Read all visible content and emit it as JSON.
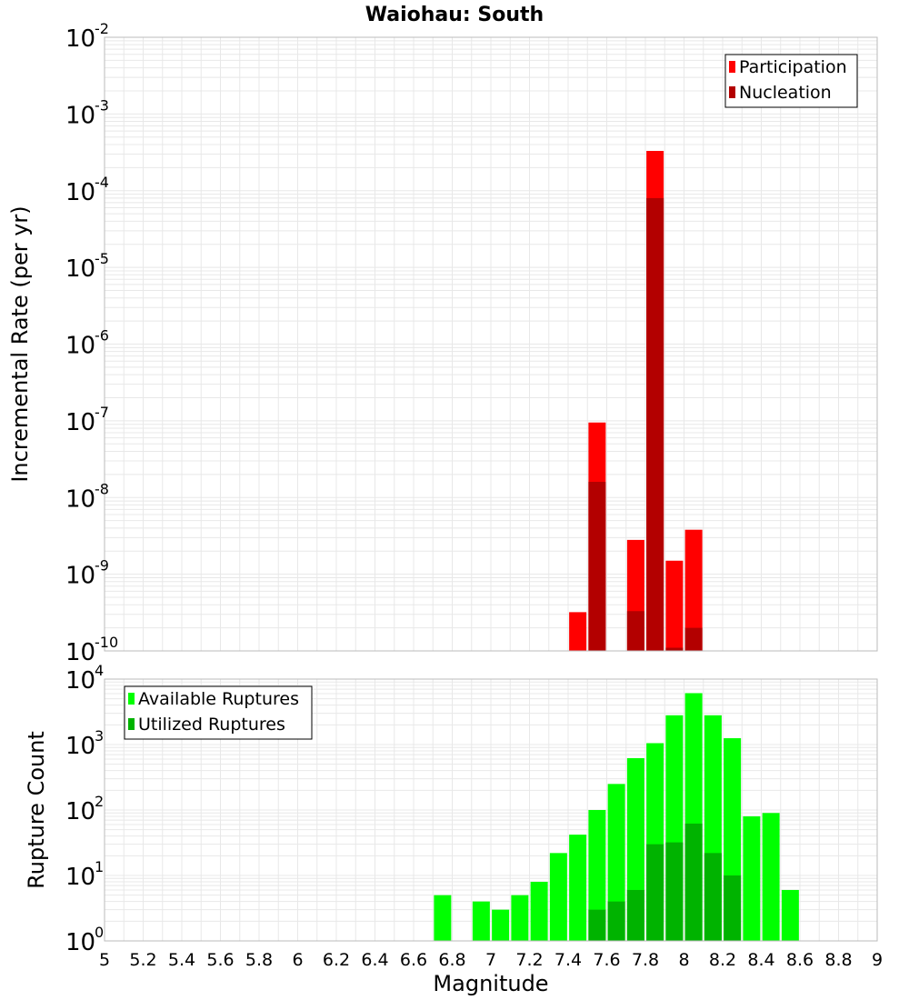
{
  "title": "Waiohau: South",
  "xlabel": "Magnitude",
  "x_ticks": [
    "5",
    "5.2",
    "5.4",
    "5.6",
    "5.8",
    "6",
    "6.2",
    "6.4",
    "6.6",
    "6.8",
    "7",
    "7.2",
    "7.4",
    "7.6",
    "7.8",
    "8",
    "8.2",
    "8.4",
    "8.6",
    "8.8",
    "9"
  ],
  "colors": {
    "participation": "#ff0000",
    "nucleation": "#b30000",
    "available": "#00ff00",
    "utilized": "#00b300",
    "grid": "#e8e8e8",
    "frame": "#bbbbbb"
  },
  "chart_data": [
    {
      "type": "bar",
      "panel": "top",
      "xlabel": "Magnitude",
      "ylabel": "Incremental Rate (per yr)",
      "xlim": [
        5,
        9
      ],
      "ylim": [
        1e-10,
        0.01
      ],
      "yscale": "log",
      "grid": true,
      "legend_placement": "top-right",
      "y_tick_labels": [
        {
          "base": "10",
          "exp": "-10"
        },
        {
          "base": "10",
          "exp": "-9"
        },
        {
          "base": "10",
          "exp": "-8"
        },
        {
          "base": "10",
          "exp": "-7"
        },
        {
          "base": "10",
          "exp": "-6"
        },
        {
          "base": "10",
          "exp": "-5"
        },
        {
          "base": "10",
          "exp": "-4"
        },
        {
          "base": "10",
          "exp": "-3"
        },
        {
          "base": "10",
          "exp": "-2"
        }
      ],
      "series": [
        {
          "name": "Participation",
          "color": "#ff0000",
          "x": [
            7.45,
            7.55,
            7.75,
            7.85,
            7.95,
            8.05
          ],
          "values": [
            3.2e-10,
            9.5e-08,
            2.8e-09,
            0.00033,
            1.5e-09,
            3.8e-09
          ]
        },
        {
          "name": "Nucleation",
          "color": "#b30000",
          "x": [
            7.55,
            7.75,
            7.85,
            7.95,
            8.05
          ],
          "values": [
            1.6e-08,
            3.3e-10,
            8e-05,
            1.1e-10,
            2e-10
          ]
        }
      ]
    },
    {
      "type": "bar",
      "panel": "bottom",
      "xlabel": "Magnitude",
      "ylabel": "Rupture Count",
      "xlim": [
        5,
        9
      ],
      "ylim": [
        1,
        10000
      ],
      "yscale": "log",
      "grid": true,
      "legend_placement": "top-left",
      "y_tick_labels": [
        {
          "base": "10",
          "exp": "0"
        },
        {
          "base": "10",
          "exp": "1"
        },
        {
          "base": "10",
          "exp": "2"
        },
        {
          "base": "10",
          "exp": "3"
        },
        {
          "base": "10",
          "exp": "4"
        }
      ],
      "series": [
        {
          "name": "Available Ruptures",
          "color": "#00ff00",
          "x": [
            6.75,
            6.95,
            7.05,
            7.15,
            7.25,
            7.35,
            7.45,
            7.55,
            7.65,
            7.75,
            7.85,
            7.95,
            8.05,
            8.15,
            8.25,
            8.35,
            8.45,
            8.55
          ],
          "values": [
            5,
            4,
            3,
            5,
            8,
            22,
            42,
            100,
            250,
            620,
            1050,
            2800,
            6100,
            2800,
            1250,
            80,
            90,
            6
          ]
        },
        {
          "name": "Utilized Ruptures",
          "color": "#00b300",
          "x": [
            7.45,
            7.55,
            7.65,
            7.75,
            7.85,
            7.95,
            8.05,
            8.15,
            8.25,
            8.35
          ],
          "values": [
            1,
            3,
            4,
            6,
            30,
            32,
            62,
            22,
            10,
            1
          ]
        }
      ]
    }
  ]
}
